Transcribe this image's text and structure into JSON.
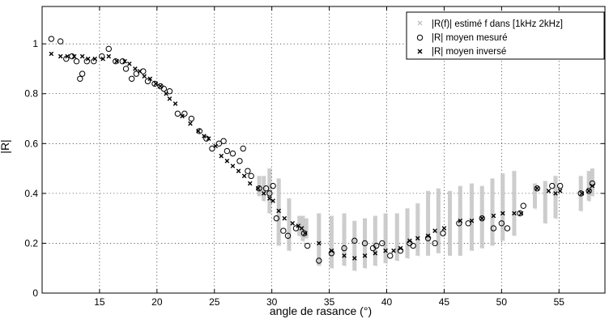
{
  "chart_data": {
    "type": "scatter",
    "xlabel": "angle de rasance (°)",
    "ylabel": "|R|",
    "xlim": [
      10,
      59
    ],
    "ylim": [
      0,
      1.15
    ],
    "xticks": [
      15,
      20,
      25,
      30,
      35,
      40,
      45,
      50,
      55
    ],
    "yticks": [
      0,
      0.2,
      0.4,
      0.6,
      0.8,
      1
    ],
    "grid": true,
    "legend_position": "top-right",
    "colors": {
      "range": "#c0c0c0",
      "measured": "#000000",
      "inverted": "#000000"
    },
    "legend": [
      {
        "label": "|R(f)| estimé f dans [1kHz 2kHz]",
        "marker": "x",
        "color": "#c0c0c0"
      },
      {
        "label": "|R| moyen mesuré",
        "marker": "o",
        "color": "#000000"
      },
      {
        "label": "|R| moyen inversé",
        "marker": "x",
        "color": "#000000"
      }
    ],
    "series": [
      {
        "name": "|R(f)| estimé f dans [1kHz 2kHz]",
        "kind": "range",
        "x": [
          28.9,
          29.3,
          29.8,
          30.6,
          31.5,
          32.4,
          32.7,
          33.0,
          34.1,
          35.2,
          36.3,
          37.2,
          38.1,
          39.0,
          39.9,
          40.9,
          41.8,
          42.7,
          43.6,
          44.5,
          45.5,
          46.4,
          47.4,
          48.3,
          49.2,
          50.1,
          51.1,
          52.9,
          53.8,
          54.7,
          56.9,
          57.6,
          57.9
        ],
        "low": [
          0.39,
          0.37,
          0.32,
          0.19,
          0.17,
          0.23,
          0.21,
          0.22,
          0.11,
          0.1,
          0.11,
          0.09,
          0.1,
          0.11,
          0.12,
          0.13,
          0.14,
          0.15,
          0.15,
          0.16,
          0.15,
          0.15,
          0.17,
          0.18,
          0.19,
          0.21,
          0.23,
          0.34,
          0.28,
          0.3,
          0.33,
          0.37,
          0.39
        ],
        "high": [
          0.47,
          0.47,
          0.5,
          0.46,
          0.38,
          0.31,
          0.31,
          0.3,
          0.32,
          0.31,
          0.32,
          0.29,
          0.3,
          0.31,
          0.32,
          0.32,
          0.34,
          0.36,
          0.41,
          0.42,
          0.41,
          0.43,
          0.44,
          0.43,
          0.46,
          0.48,
          0.49,
          0.44,
          0.45,
          0.47,
          0.47,
          0.49,
          0.5
        ]
      },
      {
        "name": "|R| moyen mesuré",
        "kind": "circle",
        "x": [
          10.8,
          11.6,
          12.1,
          12.6,
          13.0,
          13.3,
          13.5,
          13.9,
          14.5,
          15.2,
          15.8,
          16.4,
          17.0,
          17.3,
          17.8,
          18.2,
          18.8,
          19.2,
          19.8,
          20.3,
          20.6,
          21.1,
          21.8,
          22.4,
          23.0,
          23.7,
          24.3,
          24.8,
          25.4,
          25.8,
          26.1,
          26.6,
          27.2,
          27.5,
          27.9,
          28.2,
          28.9,
          29.5,
          29.8,
          30.1,
          30.4,
          31.0,
          31.4,
          32.1,
          32.8,
          33.1,
          34.1,
          35.2,
          36.3,
          37.2,
          38.1,
          38.8,
          39.1,
          39.6,
          40.3,
          41.2,
          42.0,
          42.3,
          43.6,
          44.2,
          44.9,
          46.3,
          47.1,
          48.3,
          49.3,
          50.0,
          50.5,
          51.6,
          51.9,
          53.1,
          54.4,
          55.1,
          56.9,
          57.6,
          57.9
        ],
        "y": [
          1.02,
          1.01,
          0.94,
          0.95,
          0.93,
          0.86,
          0.88,
          0.93,
          0.93,
          0.95,
          0.98,
          0.93,
          0.93,
          0.9,
          0.86,
          0.88,
          0.89,
          0.85,
          0.84,
          0.83,
          0.82,
          0.81,
          0.72,
          0.72,
          0.7,
          0.65,
          0.62,
          0.58,
          0.6,
          0.61,
          0.57,
          0.56,
          0.53,
          0.58,
          0.49,
          0.47,
          0.42,
          0.42,
          0.4,
          0.43,
          0.3,
          0.25,
          0.23,
          0.26,
          0.24,
          0.19,
          0.13,
          0.16,
          0.18,
          0.21,
          0.2,
          0.18,
          0.19,
          0.2,
          0.15,
          0.17,
          0.2,
          0.19,
          0.22,
          0.2,
          0.24,
          0.28,
          0.28,
          0.3,
          0.26,
          0.28,
          0.26,
          0.32,
          0.35,
          0.42,
          0.43,
          0.43,
          0.4,
          0.41,
          0.44
        ]
      },
      {
        "name": "|R| moyen inversé",
        "kind": "cross",
        "x": [
          10.8,
          11.6,
          12.2,
          12.8,
          13.5,
          14.0,
          14.6,
          15.3,
          15.8,
          16.5,
          17.2,
          17.6,
          18.1,
          18.5,
          18.9,
          19.4,
          19.9,
          20.3,
          20.8,
          21.1,
          21.6,
          22.2,
          22.9,
          23.6,
          24.1,
          24.5,
          25.1,
          25.6,
          26.1,
          26.6,
          27.1,
          27.6,
          28.1,
          28.8,
          29.3,
          29.8,
          30.1,
          30.6,
          31.1,
          31.8,
          32.3,
          32.6,
          32.9,
          34.1,
          35.2,
          36.3,
          37.2,
          38.1,
          39.0,
          39.9,
          40.6,
          41.2,
          42.0,
          42.7,
          43.6,
          44.2,
          45.0,
          46.4,
          47.4,
          48.3,
          49.3,
          50.1,
          51.1,
          51.7,
          53.1,
          54.1,
          54.7,
          55.1,
          57.0,
          57.6,
          57.9
        ],
        "y": [
          0.96,
          0.95,
          0.95,
          0.95,
          0.95,
          0.94,
          0.94,
          0.94,
          0.95,
          0.93,
          0.93,
          0.92,
          0.9,
          0.89,
          0.87,
          0.86,
          0.84,
          0.83,
          0.8,
          0.78,
          0.76,
          0.71,
          0.68,
          0.65,
          0.63,
          0.62,
          0.59,
          0.55,
          0.53,
          0.51,
          0.49,
          0.47,
          0.44,
          0.42,
          0.4,
          0.38,
          0.37,
          0.33,
          0.3,
          0.28,
          0.27,
          0.26,
          0.24,
          0.2,
          0.17,
          0.15,
          0.14,
          0.15,
          0.16,
          0.17,
          0.17,
          0.18,
          0.21,
          0.22,
          0.23,
          0.25,
          0.26,
          0.29,
          0.29,
          0.3,
          0.31,
          0.32,
          0.32,
          0.32,
          0.42,
          0.41,
          0.4,
          0.41,
          0.4,
          0.41,
          0.43
        ]
      }
    ]
  }
}
